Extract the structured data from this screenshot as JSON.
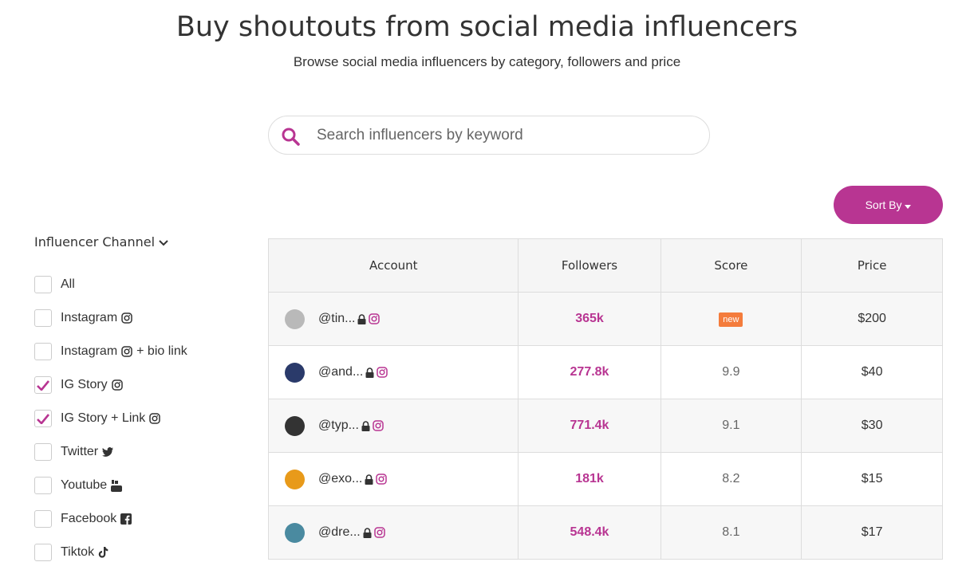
{
  "header": {
    "title": "Buy shoutouts from social media influencers",
    "subtitle": "Browse social media influencers by category, followers and price"
  },
  "search": {
    "placeholder": "Search influencers by keyword"
  },
  "sort": {
    "label": "Sort By"
  },
  "filter": {
    "title": "Influencer Channel",
    "options": [
      {
        "label": "All",
        "checked": false
      },
      {
        "label": "Instagram",
        "icon": "instagram",
        "checked": false
      },
      {
        "label": "Instagram",
        "icon": "instagram",
        "suffix": "+ bio link",
        "checked": false
      },
      {
        "label": "IG Story",
        "icon": "instagram",
        "checked": true
      },
      {
        "label": "IG Story + Link",
        "icon": "instagram",
        "checked": true
      },
      {
        "label": "Twitter",
        "icon": "twitter",
        "checked": false
      },
      {
        "label": "Youtube",
        "icon": "youtube",
        "checked": false
      },
      {
        "label": "Facebook",
        "icon": "facebook",
        "checked": false
      },
      {
        "label": "Tiktok",
        "icon": "tiktok",
        "checked": false
      }
    ]
  },
  "table": {
    "headers": [
      "Account",
      "Followers",
      "Score",
      "Price"
    ],
    "rows": [
      {
        "account": "@tin...",
        "avatar": "#b9b9b9",
        "followers": "365k",
        "score": "new",
        "price": "$200"
      },
      {
        "account": "@and...",
        "avatar": "#2a3a6a",
        "followers": "277.8k",
        "score": 9.9,
        "price": "$40"
      },
      {
        "account": "@typ...",
        "avatar": "#333333",
        "followers": "771.4k",
        "score": 9.1,
        "price": "$30"
      },
      {
        "account": "@exo...",
        "avatar": "#e89a1a",
        "followers": "181k",
        "score": 8.2,
        "price": "$15"
      },
      {
        "account": "@dre...",
        "avatar": "#4a8aa0",
        "followers": "548.4k",
        "score": 8.1,
        "price": "$17"
      }
    ]
  }
}
